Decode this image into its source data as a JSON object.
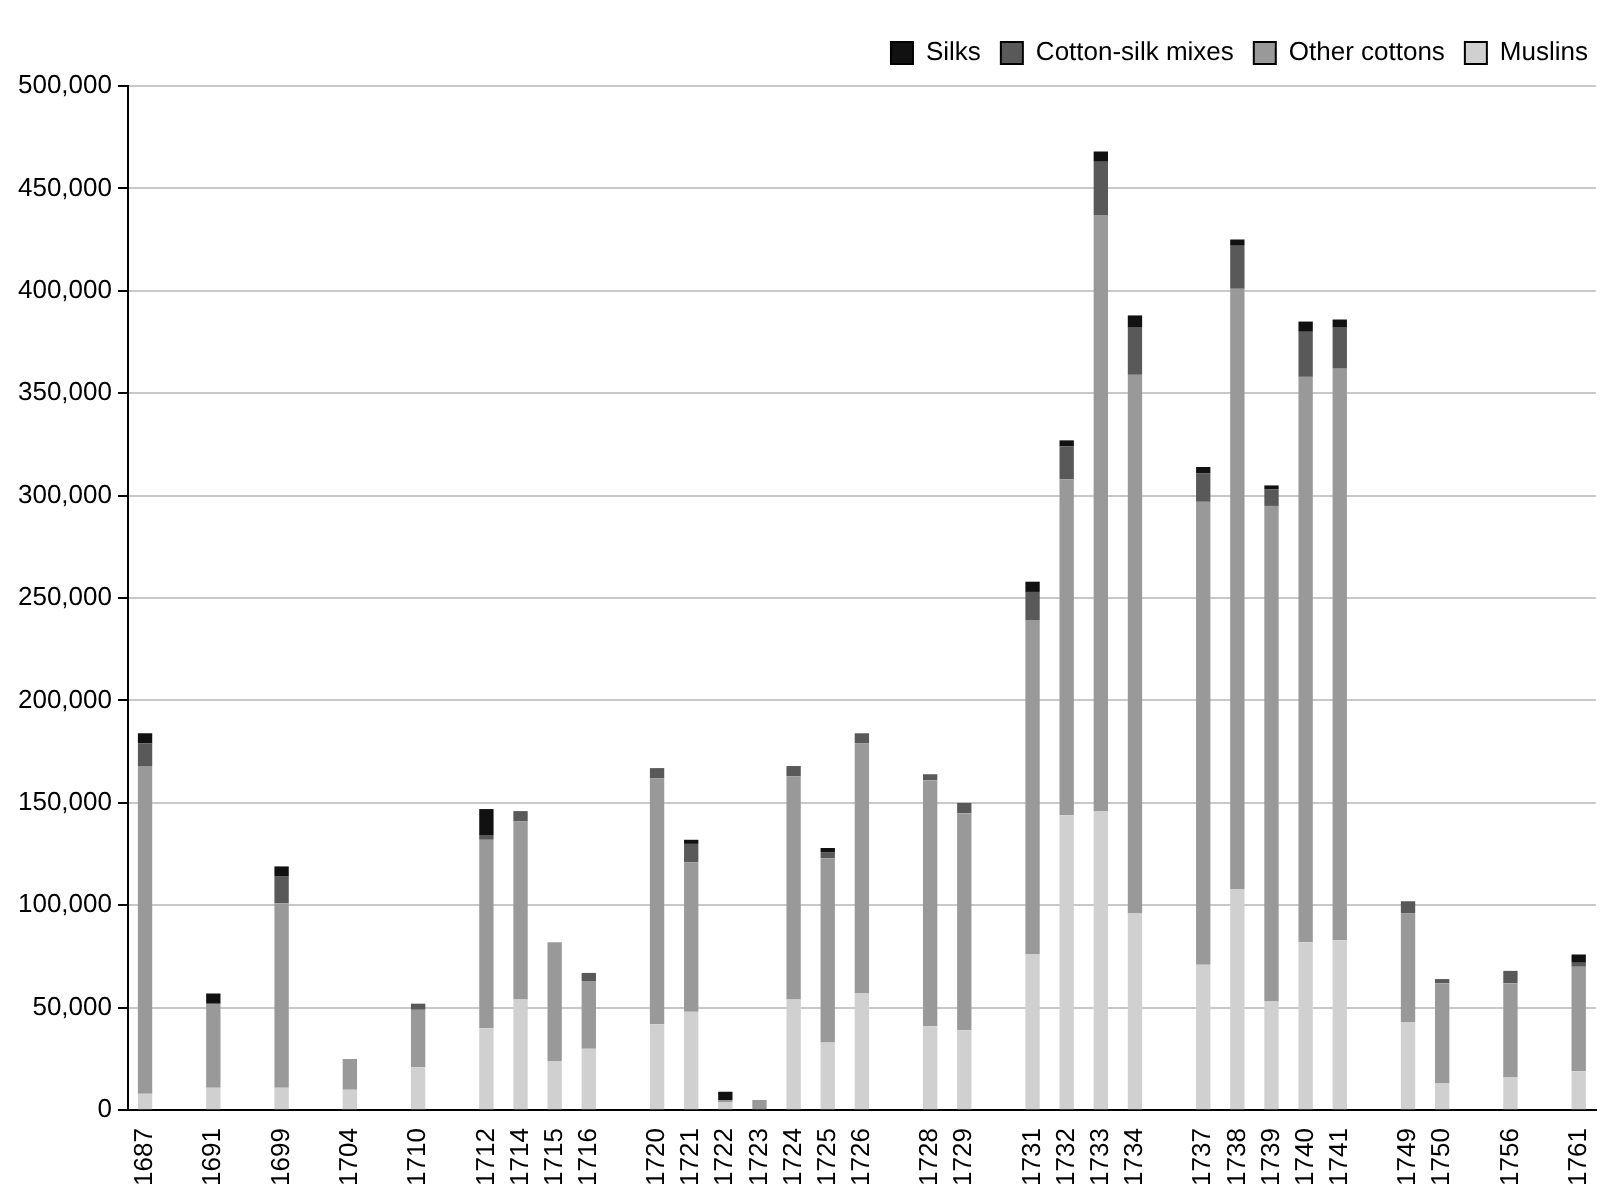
{
  "chart_data": {
    "type": "bar",
    "stacked": true,
    "legend": "top",
    "grid": "y",
    "categories": [
      "1687",
      null,
      "1691",
      null,
      "1699",
      null,
      "1704",
      null,
      "1710",
      null,
      "1712",
      "1714",
      "1715",
      "1716",
      null,
      "1720",
      "1721",
      "1722",
      "1723",
      "1724",
      "1725",
      "1726",
      null,
      "1728",
      "1729",
      null,
      "1731",
      "1732",
      "1733",
      "1734",
      null,
      "1737",
      "1738",
      "1739",
      "1740",
      "1741",
      null,
      "1749",
      "1750",
      null,
      "1756",
      null,
      "1761"
    ],
    "ylim": [
      0,
      500000
    ],
    "yticks": [
      0,
      {
        "value": 50000,
        "label": "50,000"
      },
      {
        "value": 100000,
        "label": "100,000"
      },
      {
        "value": 150000,
        "label": "150,000"
      },
      {
        "value": 200000,
        "label": "200,000"
      },
      {
        "value": 250000,
        "label": "250,000"
      },
      {
        "value": 300000,
        "label": "300,000"
      },
      {
        "value": 350000,
        "label": "350,000"
      },
      {
        "value": 400000,
        "label": "400,000"
      },
      {
        "value": 450000,
        "label": "450,000"
      },
      {
        "value": 500000,
        "label": "500,000"
      }
    ],
    "series": [
      {
        "name": "Muslins",
        "color": "#d0d0d0",
        "values": [
          8000,
          null,
          11000,
          null,
          11000,
          null,
          10000,
          null,
          21000,
          null,
          40000,
          54000,
          24000,
          30000,
          null,
          42000,
          48000,
          4000,
          0,
          54000,
          33000,
          57000,
          null,
          41000,
          39000,
          null,
          76000,
          144000,
          146000,
          96000,
          null,
          71000,
          108000,
          53000,
          82000,
          83000,
          null,
          43000,
          13000,
          null,
          16000,
          null,
          19000
        ]
      },
      {
        "name": "Other cottons",
        "color": "#999999",
        "values": [
          160000,
          null,
          41000,
          null,
          90000,
          null,
          15000,
          null,
          28000,
          null,
          92000,
          87000,
          58000,
          33000,
          null,
          120000,
          73000,
          1000,
          5000,
          109000,
          90000,
          122000,
          null,
          120000,
          106000,
          null,
          163000,
          164000,
          291000,
          263000,
          null,
          226000,
          293000,
          242000,
          276000,
          279000,
          null,
          53000,
          49000,
          null,
          46000,
          null,
          51000
        ]
      },
      {
        "name": "Cotton-silk mixes",
        "color": "#595959",
        "values": [
          11000,
          null,
          0,
          null,
          13000,
          null,
          0,
          null,
          3000,
          null,
          2000,
          5000,
          0,
          4000,
          null,
          5000,
          9000,
          0,
          0,
          5000,
          3000,
          5000,
          null,
          3000,
          5000,
          null,
          14000,
          16000,
          26000,
          23000,
          null,
          14000,
          21000,
          8000,
          22000,
          20000,
          null,
          6000,
          2000,
          null,
          6000,
          null,
          2000
        ]
      },
      {
        "name": "Silks",
        "color": "#111111",
        "values": [
          5000,
          null,
          5000,
          null,
          5000,
          null,
          0,
          null,
          0,
          null,
          13000,
          0,
          0,
          0,
          null,
          0,
          2000,
          4000,
          0,
          0,
          2000,
          0,
          null,
          0,
          0,
          null,
          5000,
          3000,
          5000,
          6000,
          null,
          3000,
          3000,
          2000,
          5000,
          4000,
          null,
          0,
          0,
          null,
          0,
          null,
          4000
        ]
      }
    ]
  }
}
